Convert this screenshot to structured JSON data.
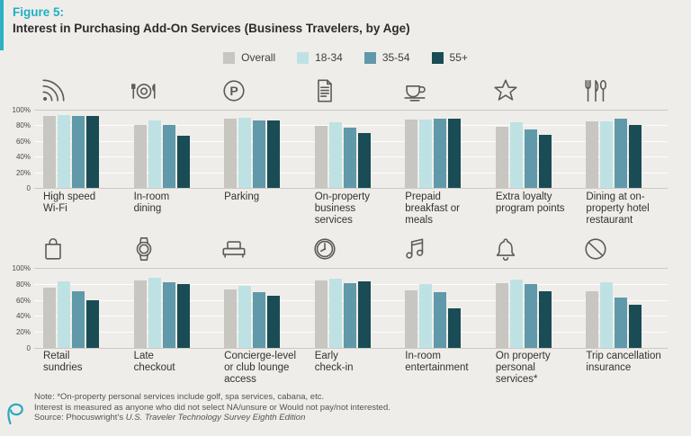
{
  "header": {
    "figure_label": "Figure 5:",
    "title": "Interest in Purchasing Add-On Services (Business Travelers, by Age)"
  },
  "legend": {
    "items": [
      {
        "label": "Overall",
        "color": "#c8c6c1"
      },
      {
        "label": "18-34",
        "color": "#bee2e4"
      },
      {
        "label": "35-54",
        "color": "#6099a9"
      },
      {
        "label": "55+",
        "color": "#1a4c55"
      }
    ]
  },
  "chart_data": {
    "type": "bar",
    "unit": "percent",
    "ylim": [
      0,
      100
    ],
    "yticks": [
      "100%",
      "80%",
      "60%",
      "40%",
      "20%",
      "0"
    ],
    "grid": true,
    "legend_position": "top",
    "series": [
      "Overall",
      "18-34",
      "35-54",
      "55+"
    ],
    "series_colors": [
      "#c8c6c1",
      "#bee2e4",
      "#6099a9",
      "#1a4c55"
    ],
    "rows": [
      {
        "groups": [
          {
            "label": "High speed\nWi-Fi",
            "icon": "wifi-icon",
            "values": [
              92,
              93,
              92,
              92
            ]
          },
          {
            "label": "In-room\ndining",
            "icon": "room-service-icon",
            "values": [
              81,
              86,
              80,
              67
            ]
          },
          {
            "label": "Parking",
            "icon": "parking-icon",
            "values": [
              88,
              90,
              86,
              86
            ]
          },
          {
            "label": "On-property\nbusiness\nservices",
            "icon": "document-icon",
            "values": [
              79,
              84,
              77,
              70
            ]
          },
          {
            "label": "Prepaid\nbreakfast or\nmeals",
            "icon": "coffee-cup-icon",
            "values": [
              87,
              87,
              88,
              88
            ]
          },
          {
            "label": "Extra loyalty\nprogram points",
            "icon": "star-icon",
            "values": [
              78,
              84,
              75,
              68
            ]
          },
          {
            "label": "Dining at on-\nproperty hotel\nrestaurant",
            "icon": "cutlery-icon",
            "values": [
              85,
              85,
              88,
              80
            ]
          }
        ]
      },
      {
        "groups": [
          {
            "label": "Retail\nsundries",
            "icon": "shopping-bag-icon",
            "values": [
              75,
              83,
              71,
              60
            ]
          },
          {
            "label": "Late\ncheckout",
            "icon": "watch-icon",
            "values": [
              84,
              88,
              82,
              80
            ]
          },
          {
            "label": "Concierge-level\nor club lounge\naccess",
            "icon": "sofa-icon",
            "values": [
              73,
              78,
              70,
              65
            ]
          },
          {
            "label": "Early\ncheck-in",
            "icon": "clock-icon",
            "values": [
              84,
              86,
              81,
              83
            ]
          },
          {
            "label": "In-room\nentertainment",
            "icon": "music-notes-icon",
            "values": [
              72,
              80,
              70,
              50
            ]
          },
          {
            "label": "On property\npersonal\nservices*",
            "icon": "bell-icon",
            "values": [
              81,
              85,
              80,
              71
            ]
          },
          {
            "label": "Trip cancellation\ninsurance",
            "icon": "no-sign-icon",
            "values": [
              71,
              82,
              63,
              54
            ]
          }
        ]
      }
    ]
  },
  "footer": {
    "note_line1": "Note: *On-property personal services include golf, spa services, cabana, etc.",
    "note_line2": "Interest is measured as anyone who did not select NA/unsure or Would not pay/not interested.",
    "source_prefix": "Source: Phocuswright’s ",
    "source_italic": "U.S. Traveler Technology Survey Eighth Edition"
  },
  "colors": {
    "background": "#efedea",
    "accent": "#2cb0c4",
    "figure_label": "#1fafc4",
    "gridline": "#ffffff",
    "icon": "#5d5b57"
  }
}
